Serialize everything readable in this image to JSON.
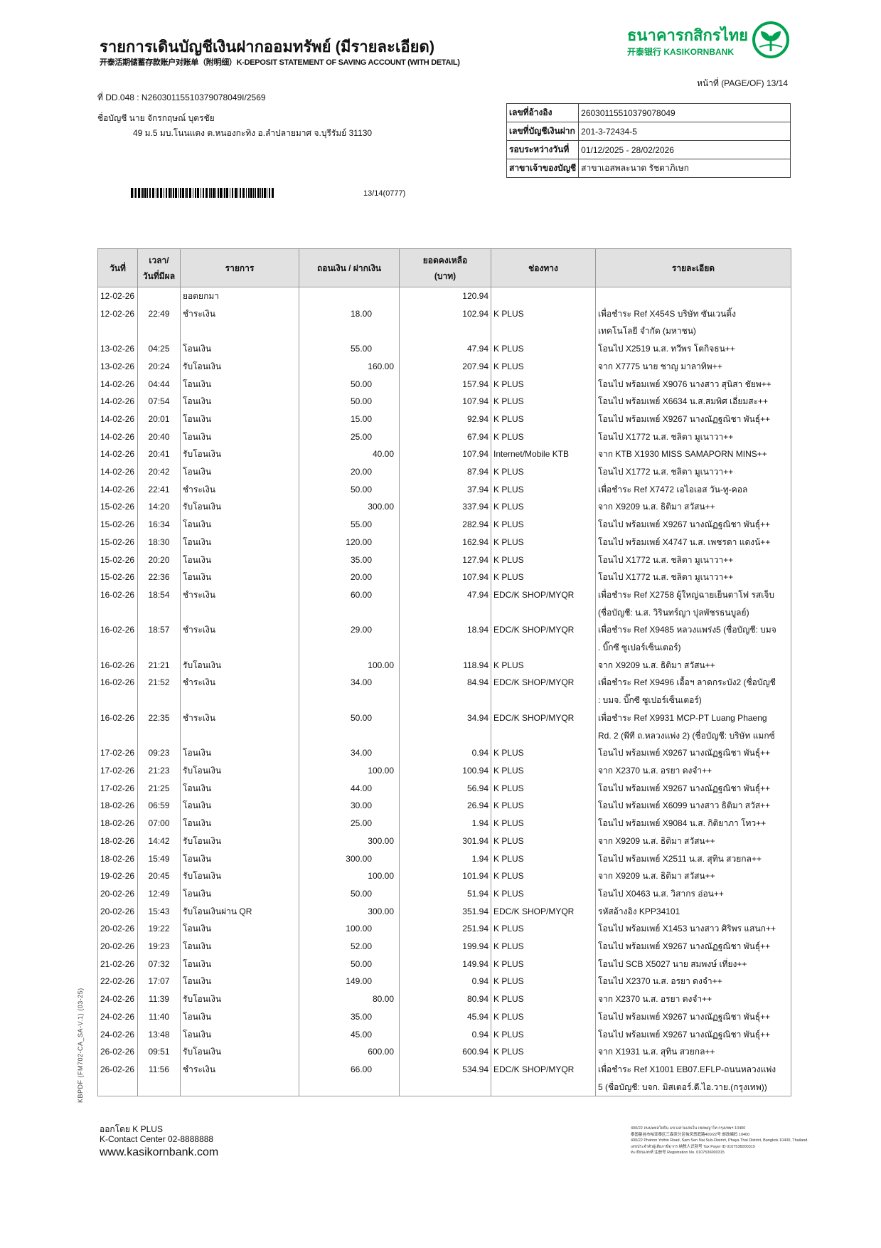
{
  "header": {
    "title": "รายการเดินบัญชีเงินฝากออมทรัพย์ (มีรายละเอียด)",
    "subtitle": "开泰活期储蓄存款账户对账单（附明细）K-DEPOSIT STATEMENT OF SAVING ACCOUNT (WITH DETAIL)",
    "bank_name_th": "ธนาคารกสิกรไทย",
    "bank_name_en": "开泰银行 KASIKORNBANK",
    "brand_color": "#00a34f",
    "page": "หน้าที่ (PAGE/OF) 13/14",
    "ref_line": "ที่ DD.048 : N26030115510379078049I/2569",
    "account_name": "ชื่อบัญชี  นาย จักรกฤษณ์ บุตรชัย",
    "address": "49 ม.5 มบ.โนนแดง ต.หนองกะทิง อ.ลำปลายมาศ จ.บุรีรัมย์ 31130",
    "barcode_text": "13/14(0777)"
  },
  "info": [
    {
      "label": "เลขที่อ้างอิง",
      "value": "26030115510379078049"
    },
    {
      "label": "เลขที่บัญชีเงินฝาก",
      "value": "201-3-72434-5"
    },
    {
      "label": "รอบระหว่างวันที่",
      "value": "01/12/2025 - 28/02/2026"
    },
    {
      "label": "สาขาเจ้าของบัญชี",
      "value": "สาขาเอสพละนาด รัชดาภิเษก"
    }
  ],
  "table": {
    "columns": [
      "วันที่",
      "เวลา/",
      "วันที่มีผล",
      "รายการ",
      "ถอนเงิน / ฝากเงิน",
      "ยอดคงเหลือ",
      "(บาท)",
      "ช่องทาง",
      "รายละเอียด"
    ],
    "rows": [
      {
        "date": "12-02-26",
        "time": "",
        "desc": "ยอดยกมา",
        "withdraw": "",
        "deposit": "",
        "balance": "120.94",
        "channel": "",
        "details": [
          ""
        ]
      },
      {
        "date": "12-02-26",
        "time": "22:49",
        "desc": "ชำระเงิน",
        "withdraw": "18.00",
        "deposit": "",
        "balance": "102.94",
        "channel": "K PLUS",
        "details": [
          "เพื่อชำระ Ref X454S บริษัท ซันเวนติ้ง",
          "เทคโนโลยี จำกัด (มหาชน)"
        ]
      },
      {
        "date": "13-02-26",
        "time": "04:25",
        "desc": "โอนเงิน",
        "withdraw": "55.00",
        "deposit": "",
        "balance": "47.94",
        "channel": "K PLUS",
        "details": [
          "โอนไป X2519 น.ส. ทวีพร โตกิจธน++"
        ]
      },
      {
        "date": "13-02-26",
        "time": "20:24",
        "desc": "รับโอนเงิน",
        "withdraw": "",
        "deposit": "160.00",
        "balance": "207.94",
        "channel": "K PLUS",
        "details": [
          "จาก X7775 นาย ชาญ มาลาทิพ++"
        ]
      },
      {
        "date": "14-02-26",
        "time": "04:44",
        "desc": "โอนเงิน",
        "withdraw": "50.00",
        "deposit": "",
        "balance": "157.94",
        "channel": "K PLUS",
        "details": [
          "โอนไป พร้อมเพย์ X9076 นางสาว สุนิสา ชัยพ++"
        ]
      },
      {
        "date": "14-02-26",
        "time": "07:54",
        "desc": "โอนเงิน",
        "withdraw": "50.00",
        "deposit": "",
        "balance": "107.94",
        "channel": "K PLUS",
        "details": [
          "โอนไป พร้อมเพย์ X6634 น.ส.สมพิศ เอี่ยมสะ++"
        ]
      },
      {
        "date": "14-02-26",
        "time": "20:01",
        "desc": "โอนเงิน",
        "withdraw": "15.00",
        "deposit": "",
        "balance": "92.94",
        "channel": "K PLUS",
        "details": [
          "โอนไป พร้อมเพย์ X9267 นางณัฏฐณิชา พันธุ์++"
        ]
      },
      {
        "date": "14-02-26",
        "time": "20:40",
        "desc": "โอนเงิน",
        "withdraw": "25.00",
        "deposit": "",
        "balance": "67.94",
        "channel": "K PLUS",
        "details": [
          "โอนไป X1772 น.ส. ชลิตา มูเนาวา++"
        ]
      },
      {
        "date": "14-02-26",
        "time": "20:41",
        "desc": "รับโอนเงิน",
        "withdraw": "",
        "deposit": "40.00",
        "balance": "107.94",
        "channel": "Internet/Mobile KTB",
        "details": [
          "จาก KTB X1930 MISS SAMAPORN MINS++"
        ]
      },
      {
        "date": "14-02-26",
        "time": "20:42",
        "desc": "โอนเงิน",
        "withdraw": "20.00",
        "deposit": "",
        "balance": "87.94",
        "channel": "K PLUS",
        "details": [
          "โอนไป X1772 น.ส. ชลิตา มูเนาวา++"
        ]
      },
      {
        "date": "14-02-26",
        "time": "22:41",
        "desc": "ชำระเงิน",
        "withdraw": "50.00",
        "deposit": "",
        "balance": "37.94",
        "channel": "K PLUS",
        "details": [
          "เพื่อชำระ Ref X7472 เอไอเอส วัน-ทู-คอล"
        ]
      },
      {
        "date": "15-02-26",
        "time": "14:20",
        "desc": "รับโอนเงิน",
        "withdraw": "",
        "deposit": "300.00",
        "balance": "337.94",
        "channel": "K PLUS",
        "details": [
          "จาก X9209 น.ส. ธิติมา สวัสน++"
        ]
      },
      {
        "date": "15-02-26",
        "time": "16:34",
        "desc": "โอนเงิน",
        "withdraw": "55.00",
        "deposit": "",
        "balance": "282.94",
        "channel": "K PLUS",
        "details": [
          "โอนไป พร้อมเพย์ X9267 นางณัฏฐณิชา พันธุ์++"
        ]
      },
      {
        "date": "15-02-26",
        "time": "18:30",
        "desc": "โอนเงิน",
        "withdraw": "120.00",
        "deposit": "",
        "balance": "162.94",
        "channel": "K PLUS",
        "details": [
          "โอนไป พร้อมเพย์ X4747 น.ส. เพชรดา แดงน้++"
        ]
      },
      {
        "date": "15-02-26",
        "time": "20:20",
        "desc": "โอนเงิน",
        "withdraw": "35.00",
        "deposit": "",
        "balance": "127.94",
        "channel": "K PLUS",
        "details": [
          "โอนไป X1772 น.ส. ชลิตา มูเนาวา++"
        ]
      },
      {
        "date": "15-02-26",
        "time": "22:36",
        "desc": "โอนเงิน",
        "withdraw": "20.00",
        "deposit": "",
        "balance": "107.94",
        "channel": "K PLUS",
        "details": [
          "โอนไป X1772 น.ส. ชลิตา มูเนาวา++"
        ]
      },
      {
        "date": "16-02-26",
        "time": "18:54",
        "desc": "ชำระเงิน",
        "withdraw": "60.00",
        "deposit": "",
        "balance": "47.94",
        "channel": "EDC/K SHOP/MYQR",
        "details": [
          "เพื่อชำระ Ref X2758 ผู้ใหญ่ฉายเย็นตาโฟ รสเจ็บ",
          "(ชื่อบัญชี: น.ส. วิรินทร์ญา ปุลพัชรธนบูลย์)"
        ]
      },
      {
        "date": "16-02-26",
        "time": "18:57",
        "desc": "ชำระเงิน",
        "withdraw": "29.00",
        "deposit": "",
        "balance": "18.94",
        "channel": "EDC/K SHOP/MYQR",
        "details": [
          "เพื่อชำระ Ref X9485 หลวงแพร่ง5 (ชื่อบัญชี: บมจ",
          ". บิ๊กซี ซูเปอร์เซ็นเตอร์)"
        ]
      },
      {
        "date": "16-02-26",
        "time": "21:21",
        "desc": "รับโอนเงิน",
        "withdraw": "",
        "deposit": "100.00",
        "balance": "118.94",
        "channel": "K PLUS",
        "details": [
          "จาก X9209 น.ส. ธิติมา สวัสน++"
        ]
      },
      {
        "date": "16-02-26",
        "time": "21:52",
        "desc": "ชำระเงิน",
        "withdraw": "34.00",
        "deposit": "",
        "balance": "84.94",
        "channel": "EDC/K SHOP/MYQR",
        "details": [
          "เพื่อชำระ Ref X9496 เอื้อฯ ลาดกระบัง2 (ชื่อบัญชี",
          ": บมจ. บิ๊กซี ซูเปอร์เซ็นเตอร์)"
        ]
      },
      {
        "date": "16-02-26",
        "time": "22:35",
        "desc": "ชำระเงิน",
        "withdraw": "50.00",
        "deposit": "",
        "balance": "34.94",
        "channel": "EDC/K SHOP/MYQR",
        "details": [
          "เพื่อชำระ Ref X9931 MCP-PT Luang Phaeng",
          "Rd. 2 (พีที ถ.หลวงแพ่ง 2) (ชื่อบัญชี: บริษัท แมกซ์"
        ]
      },
      {
        "date": "17-02-26",
        "time": "09:23",
        "desc": "โอนเงิน",
        "withdraw": "34.00",
        "deposit": "",
        "balance": "0.94",
        "channel": "K PLUS",
        "details": [
          "โอนไป พร้อมเพย์ X9267 นางณัฏฐณิชา พันธุ์++"
        ]
      },
      {
        "date": "17-02-26",
        "time": "21:23",
        "desc": "รับโอนเงิน",
        "withdraw": "",
        "deposit": "100.00",
        "balance": "100.94",
        "channel": "K PLUS",
        "details": [
          "จาก X2370 น.ส. อรยา ดงจำ++"
        ]
      },
      {
        "date": "17-02-26",
        "time": "21:25",
        "desc": "โอนเงิน",
        "withdraw": "44.00",
        "deposit": "",
        "balance": "56.94",
        "channel": "K PLUS",
        "details": [
          "โอนไป พร้อมเพย์ X9267 นางณัฏฐณิชา พันธุ์++"
        ]
      },
      {
        "date": "18-02-26",
        "time": "06:59",
        "desc": "โอนเงิน",
        "withdraw": "30.00",
        "deposit": "",
        "balance": "26.94",
        "channel": "K PLUS",
        "details": [
          "โอนไป พร้อมเพย์ X6099 นางสาว ธิติมา สวัส++"
        ]
      },
      {
        "date": "18-02-26",
        "time": "07:00",
        "desc": "โอนเงิน",
        "withdraw": "25.00",
        "deposit": "",
        "balance": "1.94",
        "channel": "K PLUS",
        "details": [
          "โอนไป พร้อมเพย์ X9084 น.ส. กิติยาภา โทว++"
        ]
      },
      {
        "date": "18-02-26",
        "time": "14:42",
        "desc": "รับโอนเงิน",
        "withdraw": "",
        "deposit": "300.00",
        "balance": "301.94",
        "channel": "K PLUS",
        "details": [
          "จาก X9209 น.ส. ธิติมา สวัสน++"
        ]
      },
      {
        "date": "18-02-26",
        "time": "15:49",
        "desc": "โอนเงิน",
        "withdraw": "300.00",
        "deposit": "",
        "balance": "1.94",
        "channel": "K PLUS",
        "details": [
          "โอนไป พร้อมเพย์ X2511 น.ส. สุทิน สวยกล++"
        ]
      },
      {
        "date": "19-02-26",
        "time": "20:45",
        "desc": "รับโอนเงิน",
        "withdraw": "",
        "deposit": "100.00",
        "balance": "101.94",
        "channel": "K PLUS",
        "details": [
          "จาก X9209 น.ส. ธิติมา สวัสน++"
        ]
      },
      {
        "date": "20-02-26",
        "time": "12:49",
        "desc": "โอนเงิน",
        "withdraw": "50.00",
        "deposit": "",
        "balance": "51.94",
        "channel": "K PLUS",
        "details": [
          "โอนไป X0463 น.ส. วิสากร อ่อน++"
        ]
      },
      {
        "date": "20-02-26",
        "time": "15:43",
        "desc": "รับโอนเงินผ่าน QR",
        "withdraw": "",
        "deposit": "300.00",
        "balance": "351.94",
        "channel": "EDC/K SHOP/MYQR",
        "details": [
          "รหัสอ้างอิง KPP34101"
        ]
      },
      {
        "date": "20-02-26",
        "time": "19:22",
        "desc": "โอนเงิน",
        "withdraw": "100.00",
        "deposit": "",
        "balance": "251.94",
        "channel": "K PLUS",
        "details": [
          "โอนไป พร้อมเพย์ X1453 นางสาว ศิริพร แสนก++"
        ]
      },
      {
        "date": "20-02-26",
        "time": "19:23",
        "desc": "โอนเงิน",
        "withdraw": "52.00",
        "deposit": "",
        "balance": "199.94",
        "channel": "K PLUS",
        "details": [
          "โอนไป พร้อมเพย์ X9267 นางณัฏฐณิชา พันธุ์++"
        ]
      },
      {
        "date": "21-02-26",
        "time": "07:32",
        "desc": "โอนเงิน",
        "withdraw": "50.00",
        "deposit": "",
        "balance": "149.94",
        "channel": "K PLUS",
        "details": [
          "โอนไป SCB X5027 นาย สมพงษ์ เที่ยง++"
        ]
      },
      {
        "date": "22-02-26",
        "time": "17:07",
        "desc": "โอนเงิน",
        "withdraw": "149.00",
        "deposit": "",
        "balance": "0.94",
        "channel": "K PLUS",
        "details": [
          "โอนไป X2370 น.ส. อรยา ดงจำ++"
        ]
      },
      {
        "date": "24-02-26",
        "time": "11:39",
        "desc": "รับโอนเงิน",
        "withdraw": "",
        "deposit": "80.00",
        "balance": "80.94",
        "channel": "K PLUS",
        "details": [
          "จาก X2370 น.ส. อรยา ดงจำ++"
        ]
      },
      {
        "date": "24-02-26",
        "time": "11:40",
        "desc": "โอนเงิน",
        "withdraw": "35.00",
        "deposit": "",
        "balance": "45.94",
        "channel": "K PLUS",
        "details": [
          "โอนไป พร้อมเพย์ X9267 นางณัฏฐณิชา พันธุ์++"
        ]
      },
      {
        "date": "24-02-26",
        "time": "13:48",
        "desc": "โอนเงิน",
        "withdraw": "45.00",
        "deposit": "",
        "balance": "0.94",
        "channel": "K PLUS",
        "details": [
          "โอนไป พร้อมเพย์ X9267 นางณัฏฐณิชา พันธุ์++"
        ]
      },
      {
        "date": "26-02-26",
        "time": "09:51",
        "desc": "รับโอนเงิน",
        "withdraw": "",
        "deposit": "600.00",
        "balance": "600.94",
        "channel": "K PLUS",
        "details": [
          "จาก X1931 น.ส. สุทิน สวยกล++"
        ]
      },
      {
        "date": "26-02-26",
        "time": "11:56",
        "desc": "ชำระเงิน",
        "withdraw": "66.00",
        "deposit": "",
        "balance": "534.94",
        "channel": "EDC/K SHOP/MYQR",
        "details": [
          "เพื่อชำระ Ref X1001 EB07.EFLP-ถนนหลวงแพ่ง",
          "5 (ชื่อบัญชี: บจก. มิสเตอร์.ดี.ไอ.วาย.(กรุงเทพ))"
        ]
      }
    ]
  },
  "footer": {
    "side_code": "KBPDF (FM702-CA_SA-V.1) (03-25)",
    "issued_by": "ออกโดย K PLUS",
    "contact": "K-Contact Center 02-8888888",
    "website": "www.kasikornbank.com",
    "address_lines": [
      "400/22 ถนนพหลโยธิน แขวงสามเสนใน เขตพญาไท กรุงเทพฯ 10400",
      "泰国曼谷市帕亚泰区三森奈分区帕凤悠庭路400/22号 邮政编码 10400",
      "400/22 Phahon Yothin Road, Sam Sen Nai Sub-District, Phaya Thai District, Bangkok 10400, Thailand.",
      "เลขประจำตัวผู้เสียภาษีอากร 纳税人识别号 Tax Payer ID 0107536000315",
      "ทะเบียนเลขที่ 注册号 Registration No. 0107536000315"
    ]
  }
}
